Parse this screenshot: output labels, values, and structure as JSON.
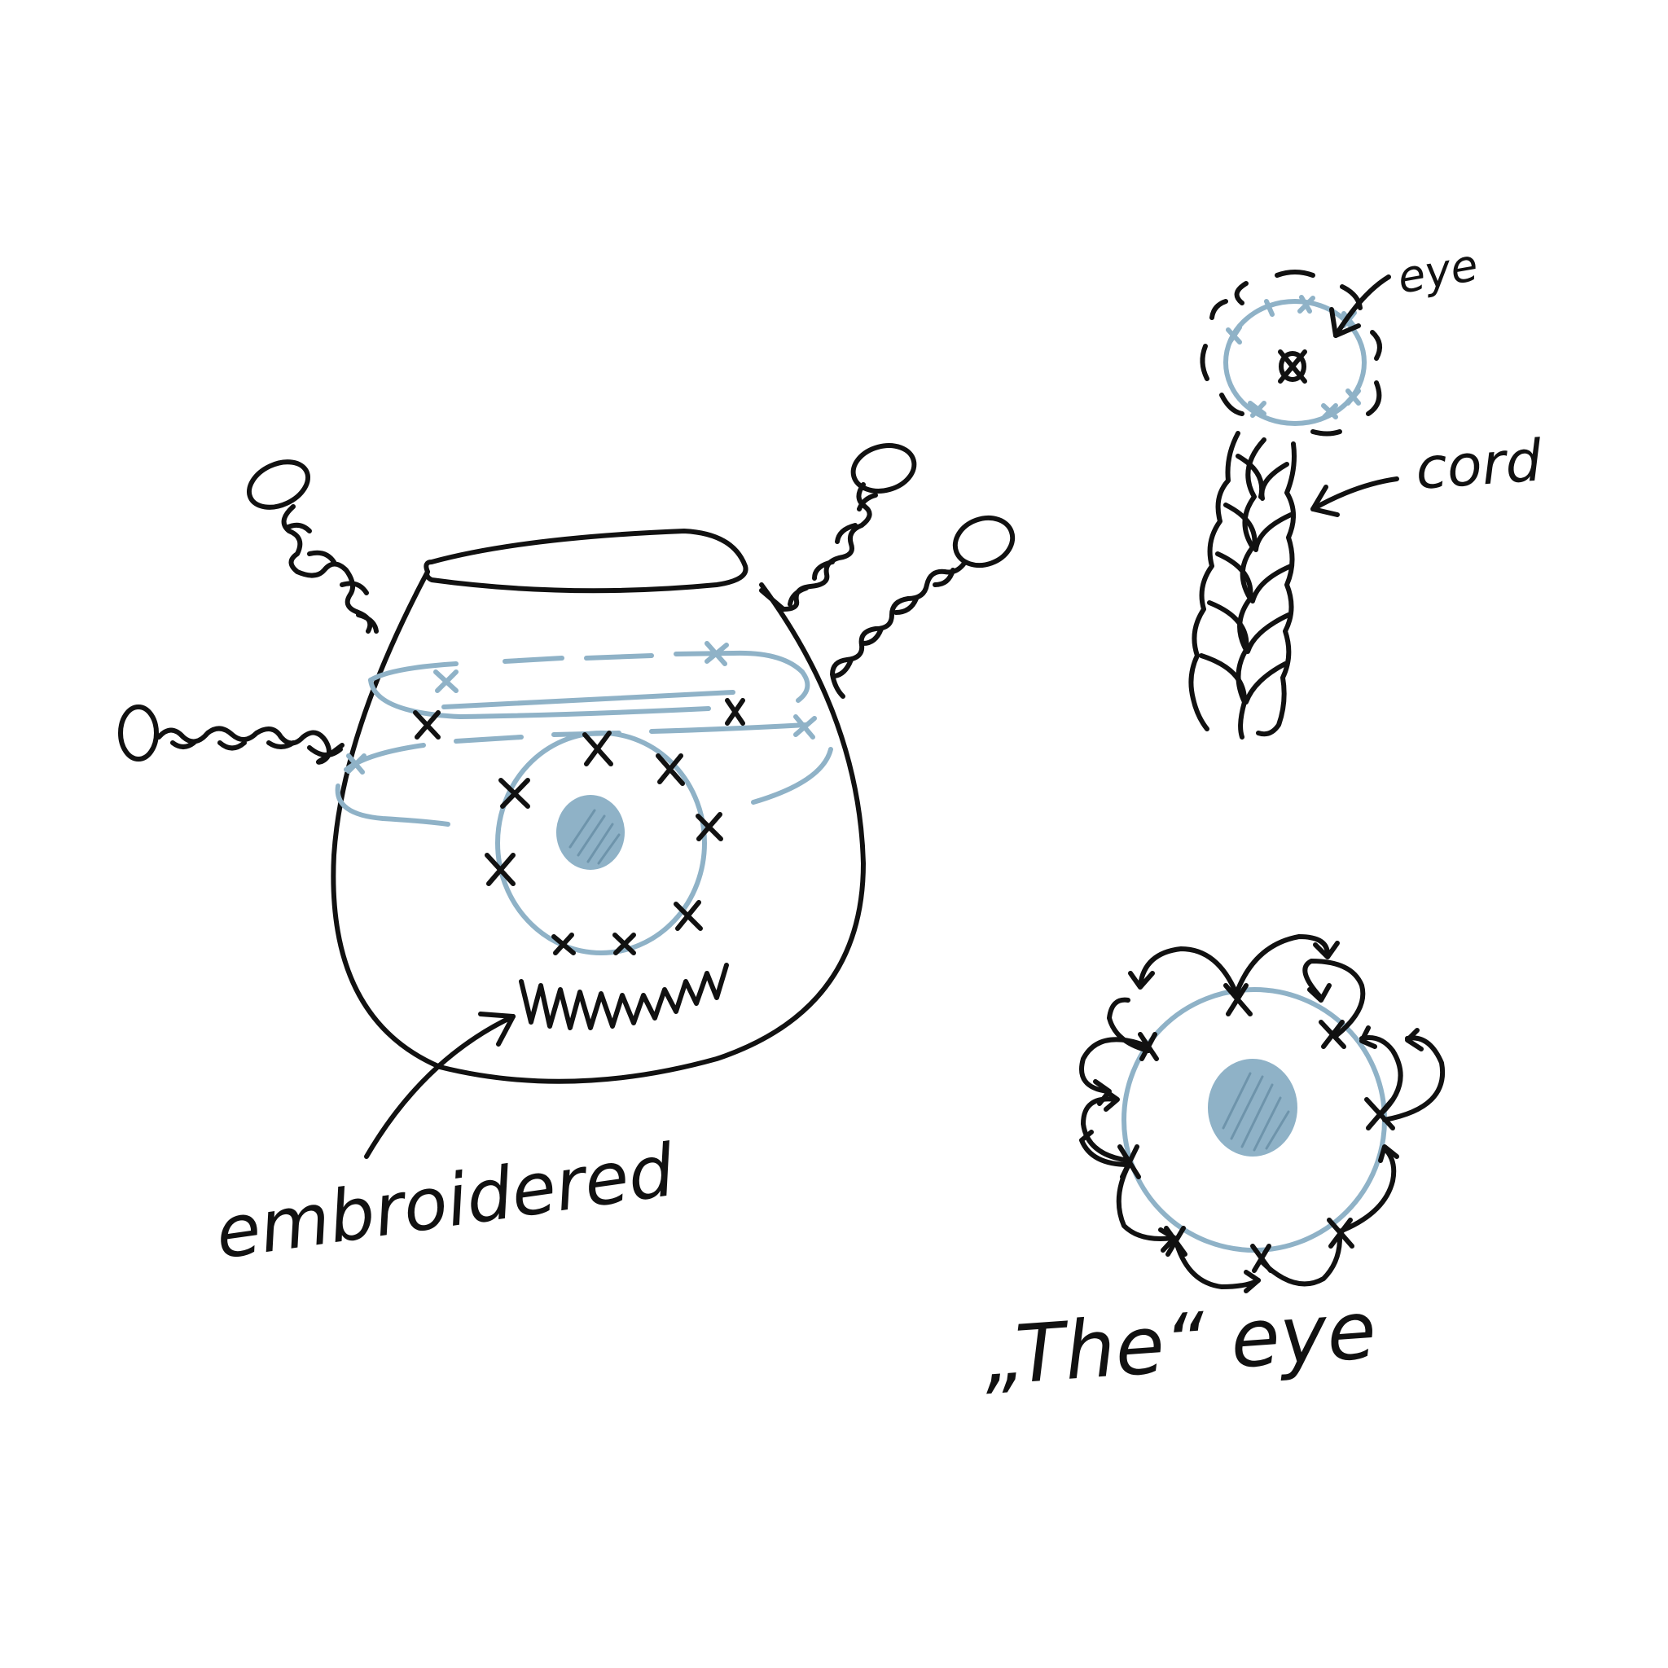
{
  "labels": {
    "embroidered": "embroidered",
    "eye_top": "eye",
    "cord": "cord",
    "the_eye": "„The“ eye"
  },
  "colors": {
    "ink": "#111111",
    "thread_blue": "#8fb2c7"
  }
}
